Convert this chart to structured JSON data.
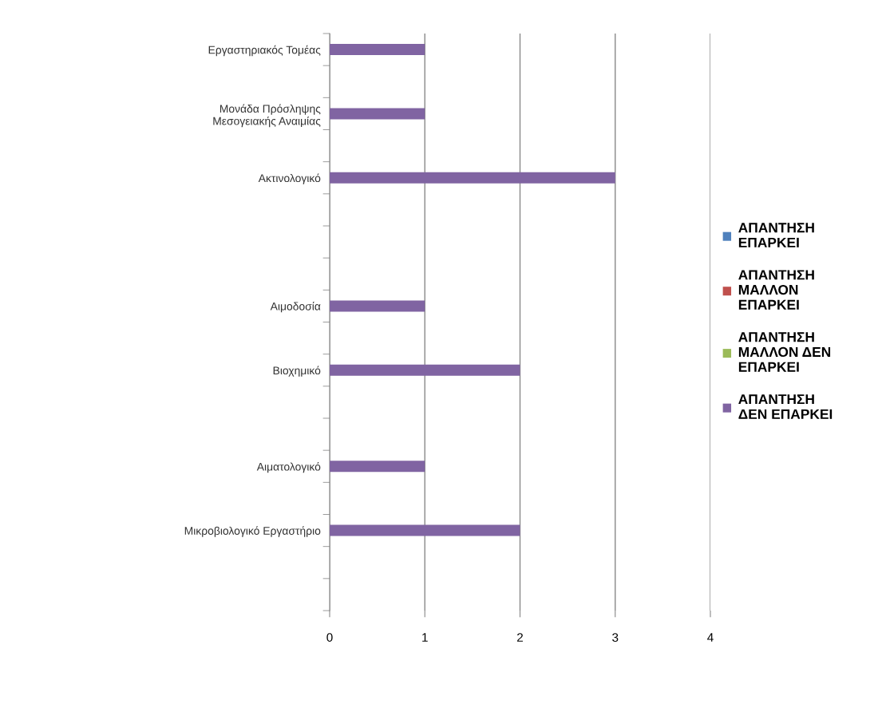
{
  "chart_data": {
    "type": "bar",
    "orientation": "horizontal",
    "categories": [
      "Εργαστηριακός Τομέας",
      null,
      "Μονάδα Πρόσληψης\nΜεσογειακής Αναιμίας",
      null,
      "Ακτινολογικό",
      null,
      null,
      null,
      "Αιμοδοσία",
      null,
      "Βιοχημικό",
      null,
      null,
      "Αιματολογικό",
      null,
      "Μικροβιολογικό Εργαστήριο",
      null,
      null
    ],
    "series": [
      {
        "name": "ΑΠΑΝΤΗΣΗ\nΕΠΑΡΚΕΙ",
        "color": "#4f81bd",
        "values": [
          null,
          null,
          null,
          null,
          null,
          null,
          null,
          null,
          null,
          null,
          null,
          null,
          null,
          null,
          null,
          null,
          null,
          null
        ]
      },
      {
        "name": "ΑΠΑΝΤΗΣΗ\nΜΑΛΛΟΝ\nΕΠΑΡΚΕΙ",
        "color": "#c0504d",
        "values": [
          null,
          null,
          null,
          null,
          null,
          null,
          null,
          null,
          null,
          null,
          null,
          null,
          null,
          null,
          null,
          null,
          null,
          null
        ]
      },
      {
        "name": "ΑΠΑΝΤΗΣΗ\nΜΑΛΛΟΝ ΔΕΝ\nΕΠΑΡΚΕΙ",
        "color": "#9bbb59",
        "values": [
          null,
          null,
          null,
          null,
          null,
          null,
          null,
          null,
          null,
          null,
          null,
          null,
          null,
          null,
          null,
          null,
          null,
          null
        ]
      },
      {
        "name": "ΑΠΑΝΤΗΣΗ\nΔΕΝ ΕΠΑΡΚΕΙ",
        "color": "#8064a2",
        "values": [
          1,
          null,
          1,
          null,
          3,
          null,
          null,
          null,
          1,
          null,
          2,
          null,
          null,
          1,
          null,
          2,
          null,
          null
        ]
      }
    ],
    "xlim": [
      0,
      4
    ],
    "xticks": [
      0,
      1,
      2,
      3,
      4
    ],
    "grid": "x",
    "legend": "right"
  }
}
